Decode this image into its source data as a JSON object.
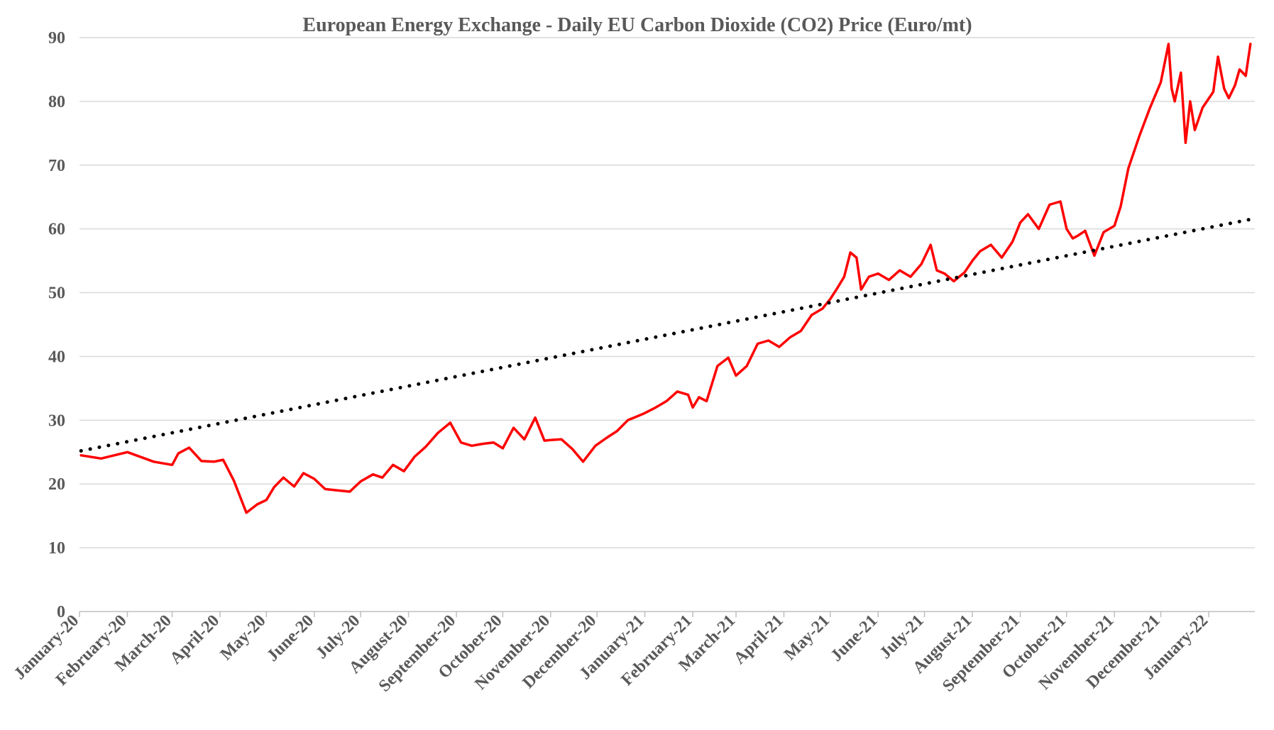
{
  "chart_data": {
    "type": "line",
    "title": "European Energy Exchange - Daily EU Carbon Dioxide (CO2) Price (Euro/mt)",
    "xlabel": "",
    "ylabel": "",
    "ylim": [
      0,
      90
    ],
    "yticks": [
      0,
      10,
      20,
      30,
      40,
      50,
      60,
      70,
      80,
      90
    ],
    "grid": true,
    "legend": "none",
    "x_tick_labels": [
      "January-20",
      "February-20",
      "March-20",
      "April-20",
      "May-20",
      "June-20",
      "July-20",
      "August-20",
      "September-20",
      "October-20",
      "November-20",
      "December-20",
      "January-21",
      "February-21",
      "March-21",
      "April-21",
      "May-21",
      "June-21",
      "July-21",
      "August-21",
      "September-21",
      "October-21",
      "November-21",
      "December-21",
      "January-22"
    ],
    "series": [
      {
        "color": "#ff0000",
        "style": "solid",
        "x": [
          "2020-01-02",
          "2020-01-15",
          "2020-02-01",
          "2020-02-18",
          "2020-03-01",
          "2020-03-05",
          "2020-03-12",
          "2020-03-20",
          "2020-03-28",
          "2020-04-03",
          "2020-04-10",
          "2020-04-18",
          "2020-04-25",
          "2020-05-01",
          "2020-05-06",
          "2020-05-12",
          "2020-05-19",
          "2020-05-25",
          "2020-06-01",
          "2020-06-08",
          "2020-06-16",
          "2020-06-24",
          "2020-07-01",
          "2020-07-09",
          "2020-07-15",
          "2020-07-22",
          "2020-07-29",
          "2020-08-05",
          "2020-08-12",
          "2020-08-20",
          "2020-08-28",
          "2020-09-04",
          "2020-09-11",
          "2020-09-18",
          "2020-09-25",
          "2020-10-01",
          "2020-10-08",
          "2020-10-15",
          "2020-10-22",
          "2020-10-28",
          "2020-11-01",
          "2020-11-08",
          "2020-11-15",
          "2020-11-22",
          "2020-11-30",
          "2020-12-07",
          "2020-12-14",
          "2020-12-21",
          "2020-12-31",
          "2021-01-08",
          "2021-01-15",
          "2021-01-22",
          "2021-01-29",
          "2021-02-01",
          "2021-02-05",
          "2021-02-10",
          "2021-02-17",
          "2021-02-24",
          "2021-03-01",
          "2021-03-08",
          "2021-03-15",
          "2021-03-22",
          "2021-03-29",
          "2021-04-05",
          "2021-04-12",
          "2021-04-19",
          "2021-04-26",
          "2021-05-01",
          "2021-05-05",
          "2021-05-10",
          "2021-05-14",
          "2021-05-18",
          "2021-05-21",
          "2021-05-26",
          "2021-06-01",
          "2021-06-08",
          "2021-06-15",
          "2021-06-22",
          "2021-06-29",
          "2021-07-01",
          "2021-07-05",
          "2021-07-09",
          "2021-07-14",
          "2021-07-20",
          "2021-07-27",
          "2021-08-01",
          "2021-08-06",
          "2021-08-13",
          "2021-08-20",
          "2021-08-27",
          "2021-09-01",
          "2021-09-06",
          "2021-09-13",
          "2021-09-20",
          "2021-09-27",
          "2021-10-01",
          "2021-10-05",
          "2021-10-08",
          "2021-10-13",
          "2021-10-19",
          "2021-10-25",
          "2021-11-01",
          "2021-11-05",
          "2021-11-10",
          "2021-11-17",
          "2021-11-24",
          "2021-12-01",
          "2021-12-06",
          "2021-12-08",
          "2021-12-10",
          "2021-12-14",
          "2021-12-17",
          "2021-12-20",
          "2021-12-23",
          "2021-12-28",
          "2022-01-04",
          "2022-01-07",
          "2022-01-11",
          "2022-01-14",
          "2022-01-18",
          "2022-01-21",
          "2022-01-25",
          "2022-01-28"
        ],
        "values": [
          24.5,
          24.0,
          25.0,
          23.5,
          23.0,
          24.8,
          25.7,
          23.6,
          23.5,
          23.8,
          20.5,
          15.5,
          16.8,
          17.5,
          19.5,
          21.0,
          19.6,
          21.7,
          20.8,
          19.2,
          19.0,
          18.8,
          20.4,
          21.5,
          21.0,
          23.0,
          22.0,
          24.3,
          25.8,
          28.0,
          29.6,
          26.5,
          26.0,
          26.3,
          26.5,
          25.6,
          28.8,
          27.0,
          30.4,
          26.8,
          26.9,
          27.0,
          25.5,
          23.5,
          26.0,
          27.2,
          28.3,
          30.0,
          31.0,
          32.0,
          33.0,
          34.5,
          34.0,
          32.0,
          33.6,
          33.0,
          38.5,
          39.8,
          37.0,
          38.5,
          42.0,
          42.5,
          41.5,
          43.0,
          44.0,
          46.5,
          47.5,
          49.0,
          50.5,
          52.5,
          56.3,
          55.5,
          50.5,
          52.5,
          53.0,
          52.0,
          53.5,
          52.5,
          54.5,
          55.5,
          57.5,
          53.5,
          53.0,
          51.8,
          53.2,
          55.0,
          56.5,
          57.5,
          55.5,
          58.0,
          61.0,
          62.3,
          60.0,
          63.8,
          64.3,
          60.0,
          58.5,
          58.9,
          59.7,
          55.8,
          59.5,
          60.5,
          63.5,
          69.5,
          74.5,
          79.0,
          83.0,
          89.0,
          82.0,
          80.0,
          84.5,
          73.5,
          80.0,
          75.5,
          79.0,
          81.5,
          87.0,
          82.0,
          80.5,
          82.5,
          85.0,
          84.0,
          89.0
        ]
      },
      {
        "color": "#000000",
        "style": "dotted",
        "x": [
          "2020-01-02",
          "2022-01-28"
        ],
        "values": [
          25.2,
          61.5
        ]
      }
    ]
  }
}
